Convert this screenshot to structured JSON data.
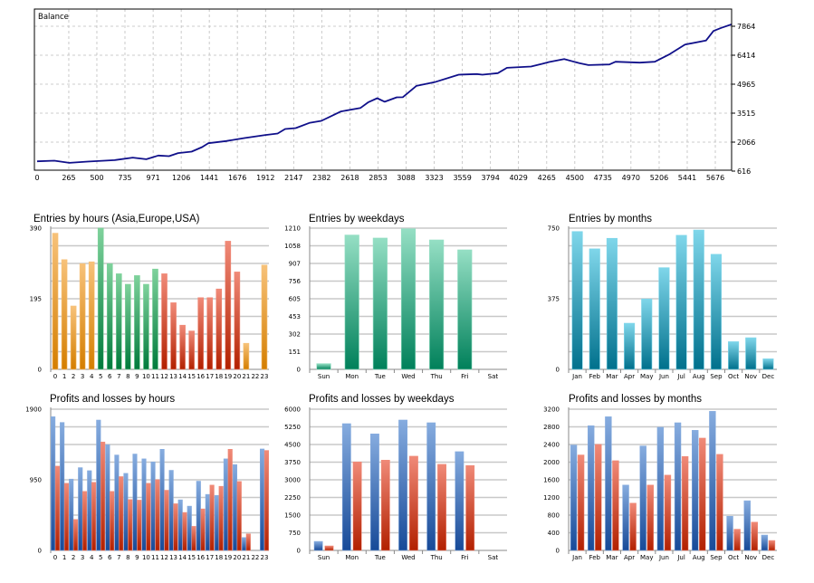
{
  "colors": {
    "balance_line": "#10108a",
    "grid": "#c8c8c8",
    "orange_top": "#f7c27a",
    "orange_bottom": "#d47e00",
    "green_top": "#7fd29c",
    "green_bottom": "#007a3c",
    "red_top": "#f08a78",
    "red_bottom": "#b22000",
    "teal_top": "#95dfc4",
    "teal_bottom": "#00805a",
    "cyan_top": "#7fd6ea",
    "cyan_bottom": "#00708c",
    "blue_top": "#86acdf",
    "blue_bottom": "#174a98"
  },
  "chart_data": [
    {
      "id": "balance",
      "type": "line",
      "title": "Balance",
      "x_ticks": [
        0,
        265,
        500,
        735,
        971,
        1206,
        1441,
        1676,
        1912,
        2147,
        2382,
        2618,
        2853,
        3088,
        3323,
        3559,
        3794,
        4029,
        4265,
        4500,
        4735,
        4970,
        5206,
        5441,
        5676
      ],
      "y_ticks": [
        616,
        2066,
        3515,
        4965,
        6414,
        7864
      ],
      "xlim": [
        0,
        5813
      ],
      "ylim": [
        616,
        7925
      ],
      "grid": true,
      "x": [
        0,
        144,
        270,
        422,
        649,
        800,
        914,
        1015,
        1104,
        1180,
        1293,
        1381,
        1432,
        1583,
        1735,
        1911,
        2013,
        2076,
        2164,
        2278,
        2379,
        2543,
        2707,
        2770,
        2846,
        2909,
        3010,
        3060,
        3174,
        3326,
        3528,
        3679,
        3727,
        3856,
        3932,
        4134,
        4235,
        4285,
        4411,
        4538,
        4614,
        4790,
        4841,
        5044,
        5170,
        5295,
        5422,
        5598,
        5661,
        5725,
        5813
      ],
      "y": [
        1069,
        1173,
        992,
        1128,
        1128,
        1327,
        1173,
        1431,
        1327,
        1554,
        1554,
        1853,
        1975,
        2156,
        2233,
        2460,
        2460,
        2759,
        2730,
        3062,
        3092,
        3637,
        3742,
        4090,
        4226,
        4120,
        4271,
        4350,
        4842,
        5100,
        5402,
        5508,
        5402,
        5553,
        5749,
        5885,
        5960,
        6110,
        6187,
        6051,
        5885,
        5990,
        6051,
        6080,
        6051,
        6505,
        6913,
        7185,
        7593,
        7820,
        7925
      ]
    },
    {
      "id": "entries-hours",
      "type": "bar",
      "title": "Entries by hours (Asia,Europe,USA)",
      "categories": [
        "0",
        "1",
        "2",
        "3",
        "4",
        "5",
        "6",
        "7",
        "8",
        "9",
        "10",
        "11",
        "12",
        "13",
        "14",
        "15",
        "16",
        "17",
        "18",
        "19",
        "20",
        "21",
        "22",
        "23"
      ],
      "y_ticks": [
        "0",
        "195",
        "390"
      ],
      "ylim": [
        0,
        390
      ],
      "grid": true,
      "series": [
        {
          "values": [
            376,
            303,
            175,
            292,
            297,
            390,
            292,
            264,
            235,
            259,
            235,
            277,
            264,
            184,
            122,
            106,
            198,
            198,
            222,
            354,
            269,
            72,
            0,
            288
          ]
        }
      ],
      "bar_colors": [
        "orange",
        "orange",
        "orange",
        "orange",
        "orange",
        "green",
        "green",
        "green",
        "green",
        "green",
        "green",
        "green",
        "red",
        "red",
        "red",
        "red",
        "red",
        "red",
        "red",
        "red",
        "red",
        "orange",
        "orange",
        "orange"
      ]
    },
    {
      "id": "entries-weekdays",
      "type": "bar",
      "title": "Entries by weekdays",
      "categories": [
        "Sun",
        "Mon",
        "Tue",
        "Wed",
        "Thu",
        "Fri",
        "Sat"
      ],
      "y_ticks": [
        "0",
        "151",
        "302",
        "453",
        "605",
        "756",
        "907",
        "1058",
        "1210"
      ],
      "ylim": [
        0,
        1210
      ],
      "grid": true,
      "series": [
        {
          "values": [
            49,
            1151,
            1125,
            1205,
            1109,
            1024,
            0
          ]
        }
      ],
      "bar_colors": [
        "teal",
        "teal",
        "teal",
        "teal",
        "teal",
        "teal",
        "teal"
      ]
    },
    {
      "id": "entries-months",
      "type": "bar",
      "title": "Entries by months",
      "categories": [
        "Jan",
        "Feb",
        "Mar",
        "Apr",
        "May",
        "Jun",
        "Jul",
        "Aug",
        "Sep",
        "Oct",
        "Nov",
        "Dec"
      ],
      "y_ticks": [
        "0",
        "375",
        "750"
      ],
      "ylim": [
        0,
        750
      ],
      "grid": true,
      "series": [
        {
          "values": [
            732,
            640,
            696,
            245,
            374,
            540,
            712,
            740,
            611,
            147,
            168,
            56
          ]
        }
      ],
      "bar_colors": [
        "cyan",
        "cyan",
        "cyan",
        "cyan",
        "cyan",
        "cyan",
        "cyan",
        "cyan",
        "cyan",
        "cyan",
        "cyan",
        "cyan"
      ]
    },
    {
      "id": "pl-hours",
      "type": "bar",
      "title": "Profits and losses by hours",
      "categories": [
        "0",
        "1",
        "2",
        "3",
        "4",
        "5",
        "6",
        "7",
        "8",
        "9",
        "10",
        "11",
        "12",
        "13",
        "14",
        "15",
        "16",
        "17",
        "18",
        "19",
        "20",
        "21",
        "22",
        "23"
      ],
      "y_ticks": [
        "0",
        "950",
        "1900"
      ],
      "ylim": [
        0,
        1900
      ],
      "grid": true,
      "series": [
        {
          "color": "blue",
          "values": [
            1799,
            1722,
            960,
            1114,
            1073,
            1754,
            1422,
            1284,
            1037,
            1297,
            1232,
            1191,
            1361,
            1078,
            681,
            596,
            932,
            754,
            741,
            1232,
            1155,
            174,
            0,
            1365
          ]
        },
        {
          "color": "red",
          "values": [
            1134,
            903,
            417,
            794,
            916,
            1459,
            794,
            993,
            685,
            677,
            903,
            952,
            810,
            628,
            511,
            324,
            559,
            879,
            863,
            1361,
            928,
            223,
            0,
            1345
          ]
        }
      ]
    },
    {
      "id": "pl-weekdays",
      "type": "bar",
      "title": "Profits and losses by weekdays",
      "categories": [
        "Sun",
        "Mon",
        "Tue",
        "Wed",
        "Thu",
        "Fri",
        "Sat"
      ],
      "y_ticks": [
        "0",
        "750",
        "1500",
        "2250",
        "3000",
        "3750",
        "4500",
        "5250",
        "6000"
      ],
      "ylim": [
        0,
        6000
      ],
      "grid": true,
      "series": [
        {
          "color": "blue",
          "values": [
            384,
            5386,
            4951,
            5540,
            5425,
            4196,
            0
          ]
        },
        {
          "color": "red",
          "values": [
            192,
            3761,
            3837,
            4004,
            3658,
            3607,
            0
          ]
        }
      ]
    },
    {
      "id": "pl-months",
      "type": "bar",
      "title": "Profits and losses by months",
      "categories": [
        "Jan",
        "Feb",
        "Mar",
        "Apr",
        "May",
        "Jun",
        "Jul",
        "Aug",
        "Sep",
        "Oct",
        "Nov",
        "Dec"
      ],
      "y_ticks": [
        "0",
        "400",
        "800",
        "1200",
        "1600",
        "2000",
        "2400",
        "2800",
        "3200"
      ],
      "ylim": [
        0,
        3200
      ],
      "grid": true,
      "series": [
        {
          "color": "blue",
          "values": [
            2388,
            2825,
            3029,
            1481,
            2367,
            2791,
            2893,
            2722,
            3152,
            775,
            1126,
            348
          ]
        },
        {
          "color": "red",
          "values": [
            2163,
            2402,
            2033,
            1071,
            1481,
            1706,
            2129,
            2545,
            2177,
            481,
            641,
            225
          ]
        }
      ]
    }
  ]
}
